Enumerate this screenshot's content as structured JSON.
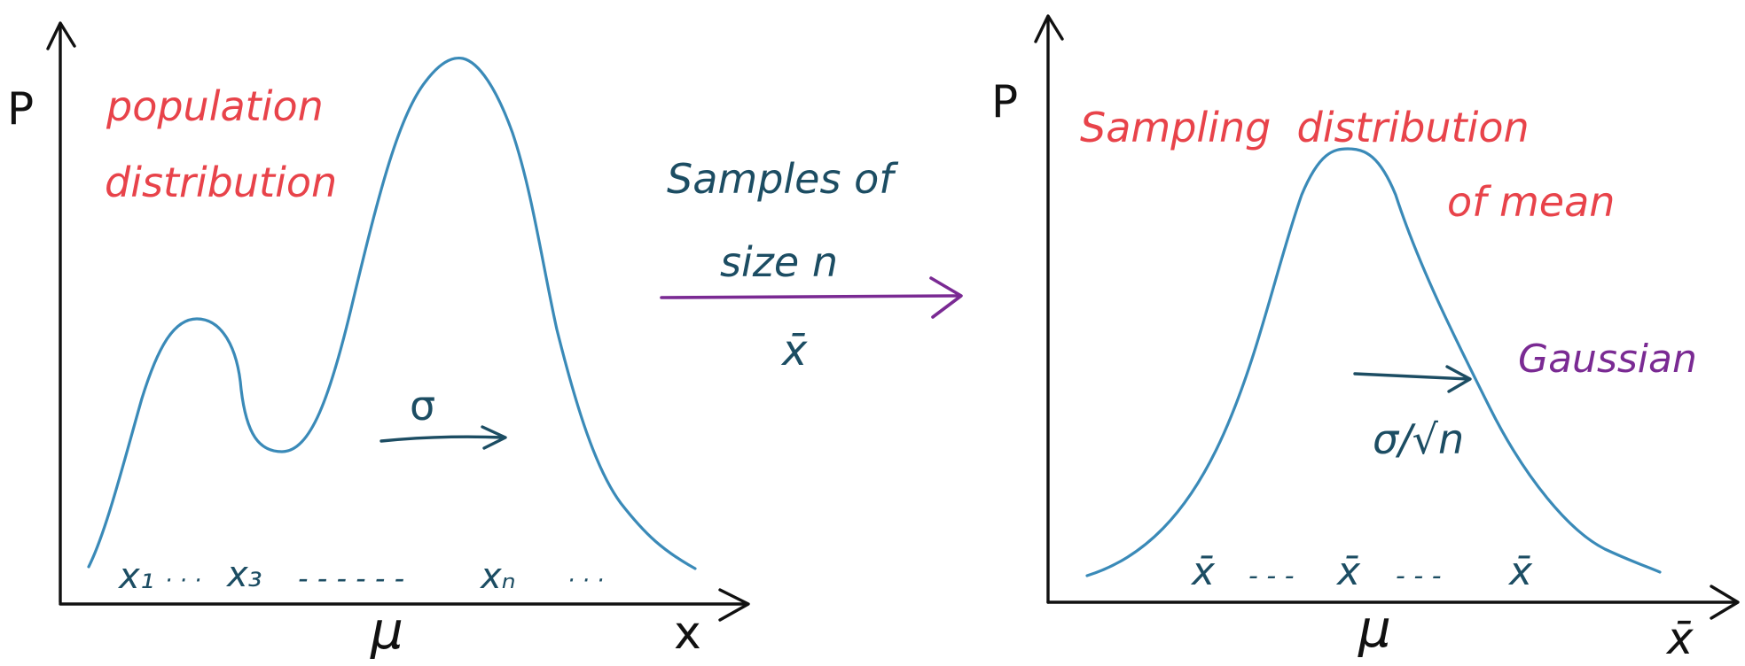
{
  "colors": {
    "axis": "#111111",
    "curve": "#3a8ab8",
    "red_label": "#e8434a",
    "dark_teal": "#1c4d63",
    "purple": "#7a2a93"
  },
  "left_panel": {
    "y_axis_label": "P",
    "x_axis_label": "x",
    "title_line1": "population",
    "title_line2": "distribution",
    "mean_label": "μ",
    "spread_label": "σ",
    "samples": [
      "x₁",
      "· · ·",
      "x₃",
      "- - - - - -",
      "xₙ",
      "· · ·"
    ]
  },
  "middle": {
    "text_line1": "Samples of",
    "text_line2": "size n",
    "symbol": "x̄"
  },
  "right_panel": {
    "y_axis_label": "P",
    "x_axis_label": "x̄",
    "title_line1": "Sampling  distribution",
    "title_line2": "of mean",
    "shape_label": "Gaussian",
    "mean_label": "μ",
    "spread_label": "σ/√n",
    "samples": [
      "x̄",
      "- - -",
      "x̄",
      "- - -",
      "x̄"
    ]
  }
}
